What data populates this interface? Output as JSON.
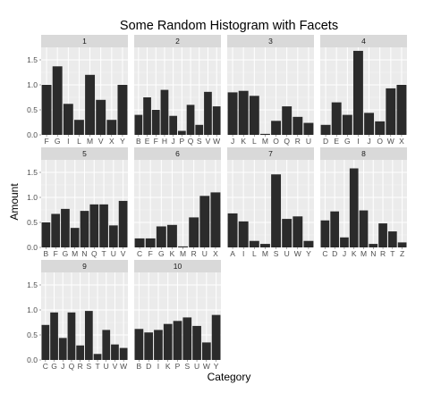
{
  "chart_data": {
    "type": "bar",
    "title": "Some Random Histogram with Facets",
    "xlabel": "Category",
    "ylabel": "Amount",
    "ylim": [
      0,
      1.75
    ],
    "yticks": [
      "0.0",
      "0.5",
      "1.0",
      "1.5"
    ],
    "grid": true,
    "layout": "facet-wrap 4 columns",
    "colors": {
      "bar": "#2b2b2b",
      "panel_bg": "#ebebeb",
      "strip_bg": "#d9d9d9",
      "grid_major": "#ffffff",
      "grid_minor": "#f5f5f5"
    },
    "facets": [
      {
        "label": "1",
        "categories": [
          "F",
          "G",
          "I",
          "L",
          "M",
          "V",
          "X",
          "Y"
        ],
        "values": [
          1.0,
          1.37,
          0.62,
          0.3,
          1.2,
          0.7,
          0.3,
          1.0
        ]
      },
      {
        "label": "2",
        "categories": [
          "B",
          "E",
          "F",
          "H",
          "J",
          "P",
          "Q",
          "S",
          "V",
          "W"
        ],
        "values": [
          0.4,
          0.75,
          0.5,
          0.9,
          0.38,
          0.08,
          0.6,
          0.2,
          0.86,
          0.57
        ]
      },
      {
        "label": "3",
        "categories": [
          "J",
          "K",
          "L",
          "M",
          "O",
          "Q",
          "R",
          "U"
        ],
        "values": [
          0.85,
          0.88,
          0.78,
          0.02,
          0.28,
          0.57,
          0.36,
          0.24
        ]
      },
      {
        "label": "4",
        "categories": [
          "D",
          "E",
          "G",
          "I",
          "J",
          "O",
          "W",
          "X"
        ],
        "values": [
          0.2,
          0.65,
          0.4,
          1.68,
          0.44,
          0.27,
          0.93,
          1.0
        ]
      },
      {
        "label": "5",
        "categories": [
          "B",
          "F",
          "G",
          "M",
          "N",
          "Q",
          "T",
          "U",
          "V"
        ],
        "values": [
          0.5,
          0.67,
          0.77,
          0.39,
          0.73,
          0.86,
          0.86,
          0.44,
          0.93
        ]
      },
      {
        "label": "6",
        "categories": [
          "C",
          "F",
          "G",
          "K",
          "M",
          "R",
          "U",
          "X"
        ],
        "values": [
          0.18,
          0.18,
          0.42,
          0.45,
          0.02,
          0.6,
          1.03,
          1.1
        ]
      },
      {
        "label": "7",
        "categories": [
          "A",
          "I",
          "L",
          "M",
          "S",
          "U",
          "W",
          "Y"
        ],
        "values": [
          0.68,
          0.52,
          0.13,
          0.07,
          1.46,
          0.57,
          0.62,
          0.13
        ]
      },
      {
        "label": "8",
        "categories": [
          "C",
          "D",
          "J",
          "K",
          "M",
          "N",
          "R",
          "T",
          "Z"
        ],
        "values": [
          0.54,
          0.72,
          0.2,
          1.58,
          0.74,
          0.07,
          0.48,
          0.32,
          0.1
        ]
      },
      {
        "label": "9",
        "categories": [
          "C",
          "G",
          "J",
          "Q",
          "R",
          "S",
          "T",
          "U",
          "V",
          "W"
        ],
        "values": [
          0.7,
          0.95,
          0.44,
          0.95,
          0.29,
          0.98,
          0.12,
          0.6,
          0.31,
          0.24
        ]
      },
      {
        "label": "10",
        "categories": [
          "B",
          "D",
          "I",
          "K",
          "P",
          "S",
          "U",
          "W",
          "Y"
        ],
        "values": [
          0.62,
          0.55,
          0.6,
          0.72,
          0.78,
          0.85,
          0.68,
          0.35,
          0.9
        ]
      }
    ]
  }
}
